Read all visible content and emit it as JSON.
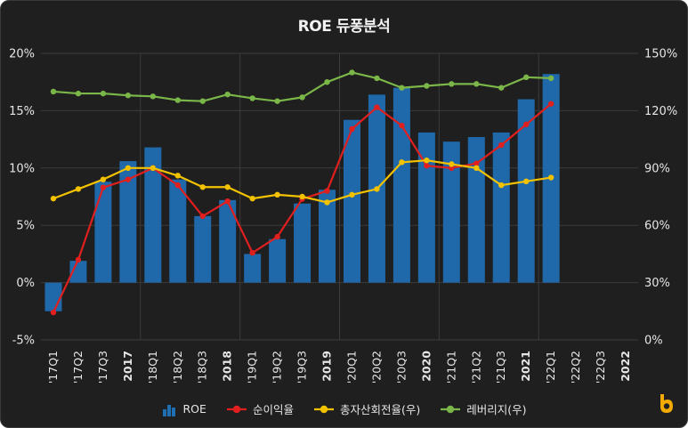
{
  "chart_data": {
    "type": "bar+line",
    "title": "ROE 듀퐁분석",
    "categories": [
      "'17Q1",
      "'17Q2",
      "'17Q3",
      "2017",
      "'18Q1",
      "'18Q2",
      "'18Q3",
      "2018",
      "'19Q1",
      "'19Q2",
      "'19Q3",
      "2019",
      "'20Q1",
      "'20Q2",
      "'20Q3",
      "2020",
      "'21Q1",
      "'21Q2",
      "'21Q3",
      "2021",
      "'22Q1",
      "'22Q2",
      "'22Q3",
      "2022"
    ],
    "bold_categories": [
      "2017",
      "2018",
      "2019",
      "2020",
      "2021",
      "2022"
    ],
    "y_left": {
      "ylim": [
        -5,
        20
      ],
      "ticks": [
        -5,
        0,
        5,
        10,
        15,
        20
      ],
      "tick_labels": [
        "-5%",
        "0%",
        "5%",
        "10%",
        "15%",
        "20%"
      ]
    },
    "y_right": {
      "ylim": [
        0,
        150
      ],
      "ticks": [
        0,
        30,
        60,
        90,
        120,
        150
      ],
      "tick_labels": [
        "0%",
        "30%",
        "60%",
        "90%",
        "120%",
        "150%"
      ]
    },
    "grid": true,
    "legend_position": "bottom",
    "series": [
      {
        "name": "ROE",
        "type": "bar",
        "axis": "left",
        "color": "#1f6fb5",
        "values": [
          -2.5,
          1.9,
          8.8,
          10.6,
          11.8,
          9.0,
          5.8,
          7.2,
          2.5,
          3.8,
          6.9,
          8.1,
          14.2,
          16.4,
          17.0,
          13.1,
          12.3,
          12.7,
          13.1,
          16.0,
          18.2,
          null,
          null,
          null
        ]
      },
      {
        "name": "순이익율",
        "type": "line",
        "axis": "left",
        "color": "#e01f1f",
        "values": [
          -2.6,
          2.0,
          8.3,
          9.0,
          10.0,
          8.5,
          5.8,
          7.1,
          2.6,
          4.0,
          7.3,
          8.0,
          13.4,
          15.3,
          13.7,
          10.2,
          10.0,
          10.4,
          12.0,
          13.8,
          15.6,
          null,
          null,
          null
        ]
      },
      {
        "name": "총자산회전율(우)",
        "type": "line",
        "axis": "right",
        "color": "#f2c200",
        "values": [
          74,
          79,
          84,
          90,
          90,
          86,
          80,
          80,
          74,
          76,
          75,
          72,
          76,
          79,
          93,
          94,
          92,
          90,
          81,
          83,
          85,
          null,
          null,
          null
        ]
      },
      {
        "name": "레버리지(우)",
        "type": "line",
        "axis": "right",
        "color": "#7ab648",
        "values": [
          130,
          129,
          129,
          128,
          127.5,
          125.5,
          125,
          128.5,
          126.5,
          125,
          127,
          135,
          140,
          137,
          132,
          133,
          134,
          134,
          132,
          137.5,
          137,
          null,
          null,
          null
        ]
      }
    ]
  },
  "legend": {
    "items": [
      {
        "label": "ROE",
        "color": "#1f6fb5",
        "kind": "bar"
      },
      {
        "label": "순이익율",
        "color": "#e01f1f",
        "kind": "line"
      },
      {
        "label": "총자산회전율(우)",
        "color": "#f2c200",
        "kind": "line"
      },
      {
        "label": "레버리지(우)",
        "color": "#7ab648",
        "kind": "line"
      }
    ]
  },
  "logo": {
    "icon": "brand-logo-icon",
    "color": "#f2a900"
  }
}
